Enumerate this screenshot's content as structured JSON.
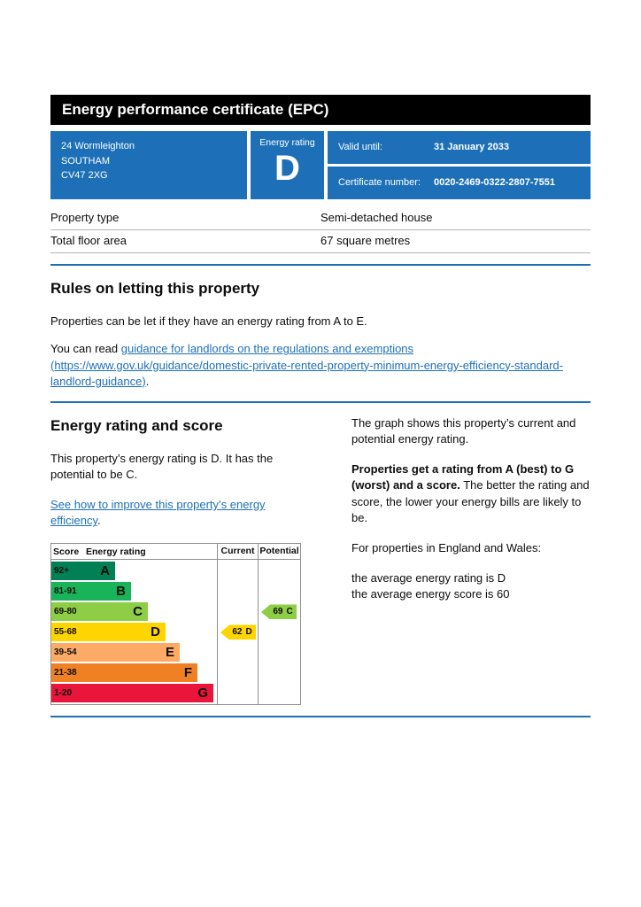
{
  "page": {
    "title": "Energy performance certificate (EPC)"
  },
  "summary": {
    "address_lines": [
      "24 Wormleighton",
      "SOUTHAM",
      "CV47 2XG"
    ],
    "rating_label": "Energy rating",
    "rating_value": "D",
    "valid_until_label": "Valid until:",
    "valid_until_value": "31 January 2033",
    "certificate_label": "Certificate number:",
    "certificate_value": "0020-2469-0322-2807-7551"
  },
  "property": {
    "rows": [
      {
        "label": "Property type",
        "value": "Semi-detached house"
      },
      {
        "label": "Total floor area",
        "value": "67 square metres"
      }
    ]
  },
  "letting": {
    "heading": "Rules on letting this property",
    "intro": "Properties can be let if they have an energy rating from A to E.",
    "read_prefix": "You can read ",
    "link_text": "guidance for landlords on the regulations and exemptions (https://www.gov.uk/guidance/domestic-private-rented-property-minimum-energy-efficiency-standard-landlord-guidance)",
    "read_suffix": "."
  },
  "rating": {
    "heading": "Energy rating and score",
    "intro": "This property’s energy rating is D. It has the potential to be C.",
    "improve_link": "See how to improve this property’s energy efficiency",
    "improve_suffix": ".",
    "graph_intro": "The graph shows this property’s current and potential energy rating.",
    "explain_bold": "Properties get a rating from A (best) to G (worst) and a score.",
    "explain_rest": " The better the rating and score, the lower your energy bills are likely to be.",
    "averages_intro": "For properties in England and Wales:",
    "average_rating": "the average energy rating is D",
    "average_score": "the average energy score is 60"
  },
  "chart_data": {
    "type": "epc-rating-bands",
    "columns": [
      "Score",
      "Energy rating",
      "Current",
      "Potential"
    ],
    "bands": [
      {
        "score": "92+",
        "letter": "A",
        "color": "#008054",
        "width_pct": 23
      },
      {
        "score": "81-91",
        "letter": "B",
        "color": "#19b459",
        "width_pct": 35
      },
      {
        "score": "69-80",
        "letter": "C",
        "color": "#8dce46",
        "width_pct": 48
      },
      {
        "score": "55-68",
        "letter": "D",
        "color": "#ffd500",
        "width_pct": 61
      },
      {
        "score": "39-54",
        "letter": "E",
        "color": "#fcaa65",
        "width_pct": 72
      },
      {
        "score": "21-38",
        "letter": "F",
        "color": "#ef8023",
        "width_pct": 85
      },
      {
        "score": "1-20",
        "letter": "G",
        "color": "#e9153b",
        "width_pct": 97
      }
    ],
    "current": {
      "score": 62,
      "letter": "D",
      "band_index": 3,
      "color": "#ffd500"
    },
    "potential": {
      "score": 69,
      "letter": "C",
      "band_index": 2,
      "color": "#8dce46"
    }
  },
  "colors": {
    "brand_blue": "#1d70b8",
    "header_black": "#000000",
    "border_grey": "#b1b4b6"
  }
}
